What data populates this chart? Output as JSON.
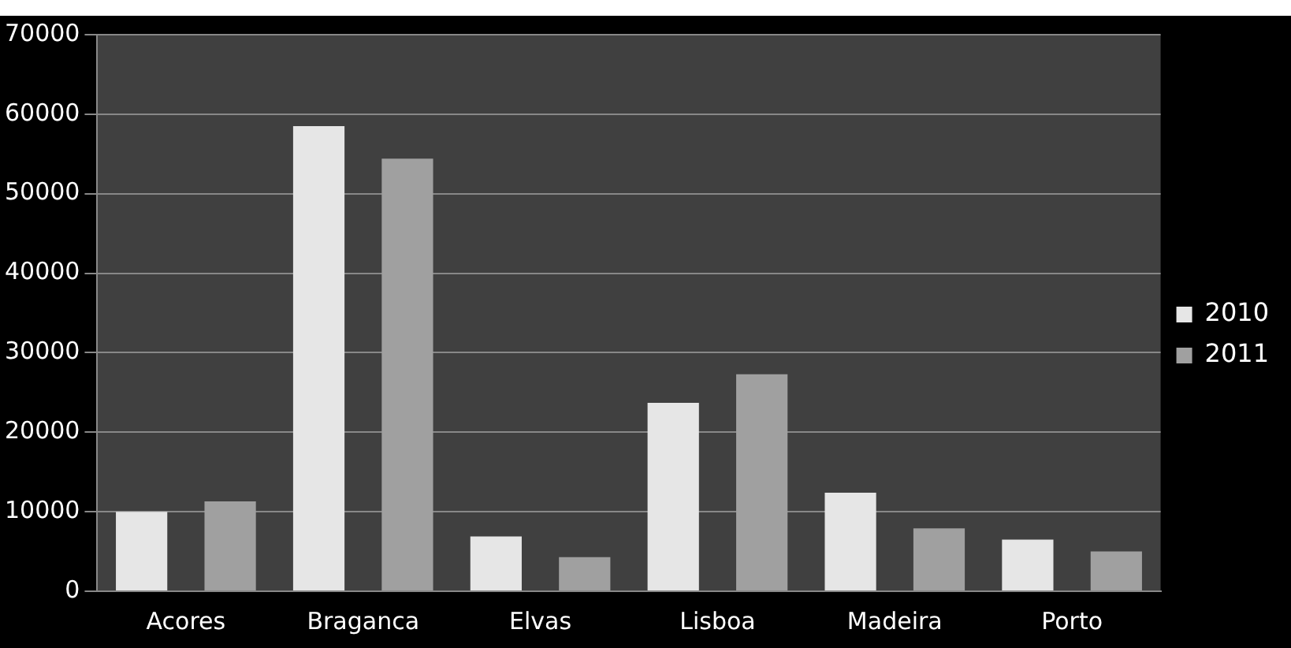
{
  "chart_data": {
    "type": "bar",
    "categories": [
      "Acores",
      "Braganca",
      "Elvas",
      "Lisboa",
      "Madeira",
      "Porto"
    ],
    "series": [
      {
        "name": "2010",
        "color": "#e6e6e6",
        "values": [
          10000,
          58500,
          6900,
          23700,
          12400,
          6500
        ]
      },
      {
        "name": "2011",
        "color": "#a0a0a0",
        "values": [
          11300,
          54400,
          4300,
          27300,
          7900,
          5000
        ]
      }
    ],
    "ylim": [
      0,
      70000
    ],
    "yticks": [
      0,
      10000,
      20000,
      30000,
      40000,
      50000,
      60000,
      70000
    ],
    "grid": "y",
    "legend": "right"
  }
}
